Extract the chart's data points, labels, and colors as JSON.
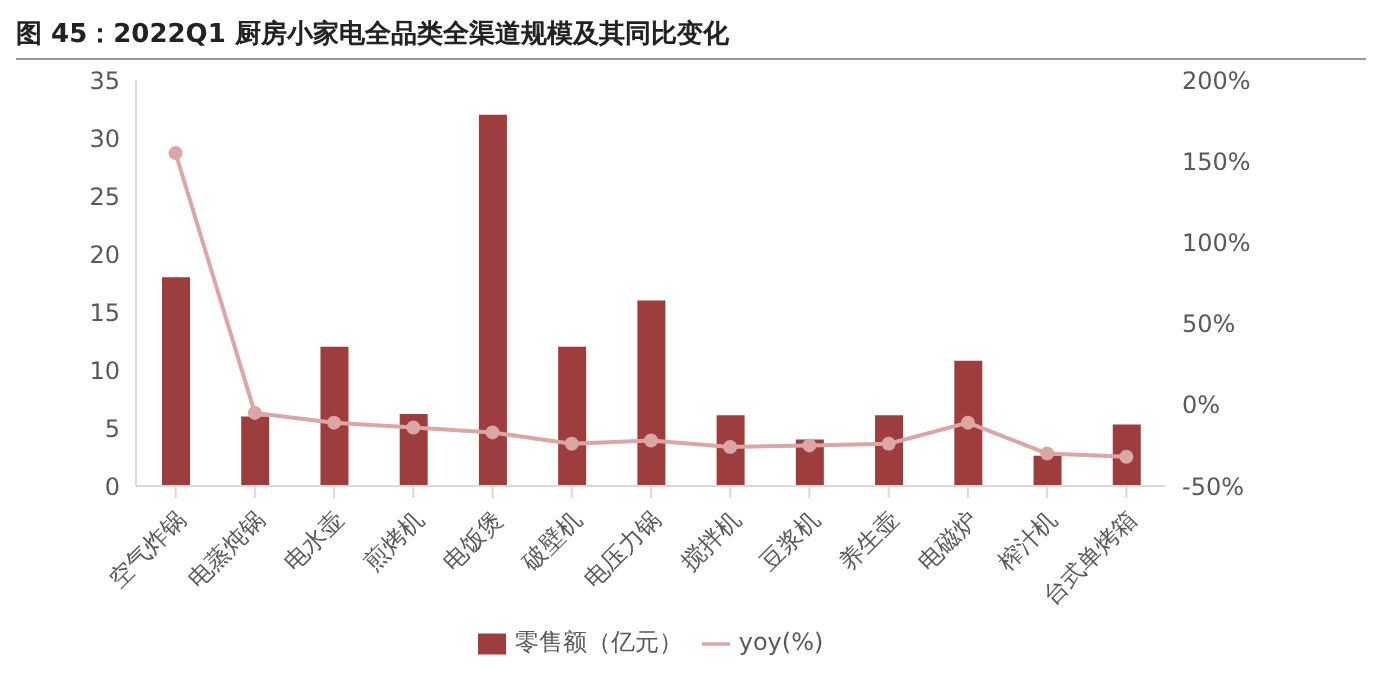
{
  "chart_data": {
    "type": "bar",
    "title": "图 45：2022Q1 厨房小家电全品类全渠道规模及其同比变化",
    "categories": [
      "空气炸锅",
      "电蒸炖锅",
      "电水壶",
      "煎烤机",
      "电饭煲",
      "破壁机",
      "电压力锅",
      "搅拌机",
      "豆浆机",
      "养生壶",
      "电磁炉",
      "榨汁机",
      "台式单烤箱"
    ],
    "series": [
      {
        "name": "零售额（亿元）",
        "color": "#9e3d3d",
        "values": [
          18,
          6,
          12,
          6.2,
          32,
          12,
          16,
          6.1,
          4,
          6.1,
          10.8,
          2.6,
          5.3
        ]
      },
      {
        "name": "yoy(%)",
        "type": "line",
        "axis": "y2",
        "color": "#dca6a6",
        "values": [
          155,
          -5,
          -11,
          -14,
          -17,
          -24,
          -22,
          -26,
          -25,
          -24,
          -11,
          -30,
          -32
        ]
      }
    ],
    "ylim": [
      0,
      35
    ],
    "yticks": [
      0,
      5,
      10,
      15,
      20,
      25,
      30,
      35
    ],
    "y2lim": [
      -50,
      200
    ],
    "y2ticks": [
      {
        "value": -50,
        "label": "-50%"
      },
      {
        "value": 0,
        "label": "0%"
      },
      {
        "value": 50,
        "label": "50%"
      },
      {
        "value": 100,
        "label": "100%"
      },
      {
        "value": 150,
        "label": "150%"
      },
      {
        "value": 200,
        "label": "200%"
      }
    ],
    "grid": false,
    "legend": "bottom",
    "marker": "circle",
    "line_style": "solid"
  }
}
